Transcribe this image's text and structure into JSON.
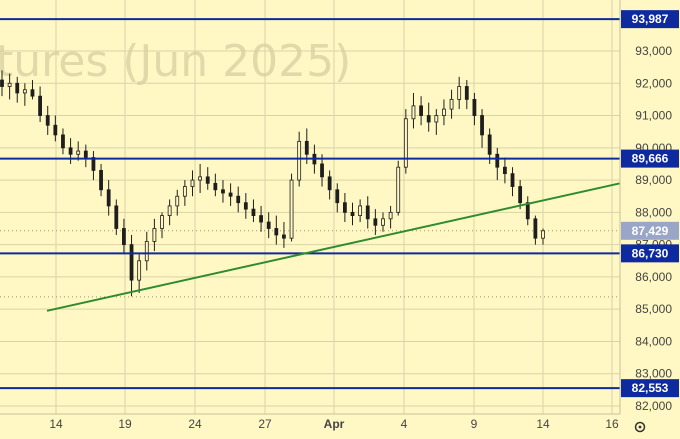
{
  "watermark": "tures (Jun 2025)",
  "colors": {
    "background": "#fff8c4",
    "grid": "#d9d3a8",
    "candle": "#1e1e1e",
    "level_line": "#0d2a9e",
    "trend_line": "#2e8b2e",
    "current_price_bg": "#9aa6c8"
  },
  "settings_icon": "gear-icon",
  "chart_data": {
    "type": "candlestick",
    "title": "",
    "xlabel": "",
    "ylabel": "",
    "ylim": [
      82300,
      94400
    ],
    "y_ticks": [
      "82,000",
      "83,000",
      "84,000",
      "85,000",
      "86,000",
      "87,000",
      "88,000",
      "89,000",
      "90,000",
      "91,000",
      "92,000",
      "93,000"
    ],
    "y_tick_values": [
      82000,
      83000,
      84000,
      85000,
      86000,
      87000,
      88000,
      89000,
      90000,
      91000,
      92000,
      93000
    ],
    "x_ticks": [
      "14",
      "19",
      "24",
      "27",
      "Apr",
      "4",
      "9",
      "14",
      "16"
    ],
    "grid": true,
    "horizontal_levels": [
      {
        "label": "93,987",
        "value": 93987
      },
      {
        "label": "89,666",
        "value": 89666
      },
      {
        "label": "86,730",
        "value": 86730
      },
      {
        "label": "82,553",
        "value": 82553
      }
    ],
    "current_price": {
      "label": "87,429",
      "value": 87429
    },
    "dotted_levels": [
      87429,
      85380
    ],
    "trendline": {
      "from": {
        "x": "Mar 13",
        "y": 84950
      },
      "to": {
        "x": "Apr 16",
        "y": 88900
      }
    },
    "series": [
      {
        "values": [
          [
            92100,
            92400,
            91600,
            91900
          ],
          [
            91900,
            92300,
            91500,
            92000
          ],
          [
            92000,
            92200,
            91400,
            91700
          ],
          [
            91700,
            92000,
            91300,
            91800
          ],
          [
            91800,
            92100,
            91500,
            91600
          ],
          [
            91600,
            91900,
            90800,
            91000
          ],
          [
            91000,
            91300,
            90400,
            90700
          ],
          [
            90700,
            91000,
            90200,
            90400
          ],
          [
            90400,
            90600,
            89800,
            90000
          ],
          [
            90000,
            90300,
            89500,
            89800
          ],
          [
            89800,
            90200,
            89600,
            89900
          ],
          [
            89900,
            90100,
            89400,
            89700
          ],
          [
            89700,
            89900,
            89000,
            89300
          ],
          [
            89300,
            89500,
            88500,
            88700
          ],
          [
            88700,
            89000,
            87900,
            88200
          ],
          [
            88200,
            88400,
            87300,
            87500
          ],
          [
            87500,
            87800,
            86700,
            87000
          ],
          [
            87000,
            87300,
            85400,
            85900
          ],
          [
            85900,
            86700,
            85500,
            86500
          ],
          [
            86500,
            87400,
            86200,
            87100
          ],
          [
            87100,
            87800,
            86800,
            87500
          ],
          [
            87500,
            88000,
            87200,
            87900
          ],
          [
            87900,
            88400,
            87600,
            88200
          ],
          [
            88200,
            88700,
            87900,
            88500
          ],
          [
            88500,
            89000,
            88200,
            88800
          ],
          [
            88800,
            89300,
            88500,
            89000
          ],
          [
            89000,
            89500,
            88600,
            89100
          ],
          [
            89100,
            89400,
            88700,
            88900
          ],
          [
            88900,
            89200,
            88500,
            88700
          ],
          [
            88700,
            89000,
            88300,
            88600
          ],
          [
            88600,
            88900,
            88200,
            88500
          ],
          [
            88500,
            88800,
            88000,
            88300
          ],
          [
            88300,
            88600,
            87800,
            88100
          ],
          [
            88100,
            88400,
            87700,
            87900
          ],
          [
            87900,
            88200,
            87400,
            87700
          ],
          [
            87700,
            88000,
            87200,
            87500
          ],
          [
            87500,
            87900,
            87000,
            87300
          ],
          [
            87300,
            87700,
            86900,
            87200
          ],
          [
            87200,
            89200,
            87100,
            89000
          ],
          [
            89000,
            90500,
            88800,
            90200
          ],
          [
            90200,
            90600,
            89500,
            89800
          ],
          [
            89800,
            90100,
            89200,
            89500
          ],
          [
            89500,
            89800,
            88800,
            89100
          ],
          [
            89100,
            89300,
            88400,
            88700
          ],
          [
            88700,
            88900,
            88000,
            88300
          ],
          [
            88300,
            88600,
            87700,
            88000
          ],
          [
            88000,
            88300,
            87600,
            87900
          ],
          [
            87900,
            88400,
            87700,
            88200
          ],
          [
            88200,
            88500,
            87500,
            87800
          ],
          [
            87800,
            88100,
            87300,
            87600
          ],
          [
            87600,
            88000,
            87400,
            87800
          ],
          [
            87800,
            88200,
            87500,
            88000
          ],
          [
            88000,
            89600,
            87900,
            89400
          ],
          [
            89400,
            91200,
            89200,
            90900
          ],
          [
            90900,
            91700,
            90600,
            91300
          ],
          [
            91300,
            91600,
            90700,
            91000
          ],
          [
            91000,
            91400,
            90500,
            90800
          ],
          [
            90800,
            91200,
            90400,
            91000
          ],
          [
            91000,
            91500,
            90700,
            91200
          ],
          [
            91200,
            91800,
            90900,
            91500
          ],
          [
            91500,
            92200,
            91200,
            91900
          ],
          [
            91900,
            92100,
            91200,
            91500
          ],
          [
            91500,
            91700,
            90700,
            91000
          ],
          [
            91000,
            91200,
            90000,
            90400
          ],
          [
            90400,
            90600,
            89500,
            89800
          ],
          [
            89800,
            90000,
            89000,
            89400
          ],
          [
            89400,
            89700,
            88900,
            89200
          ],
          [
            89200,
            89400,
            88500,
            88800
          ],
          [
            88800,
            89000,
            88100,
            88300
          ],
          [
            88300,
            88500,
            87600,
            87800
          ],
          [
            87800,
            87900,
            87000,
            87200
          ],
          [
            87200,
            87500,
            87000,
            87429
          ]
        ]
      }
    ]
  }
}
